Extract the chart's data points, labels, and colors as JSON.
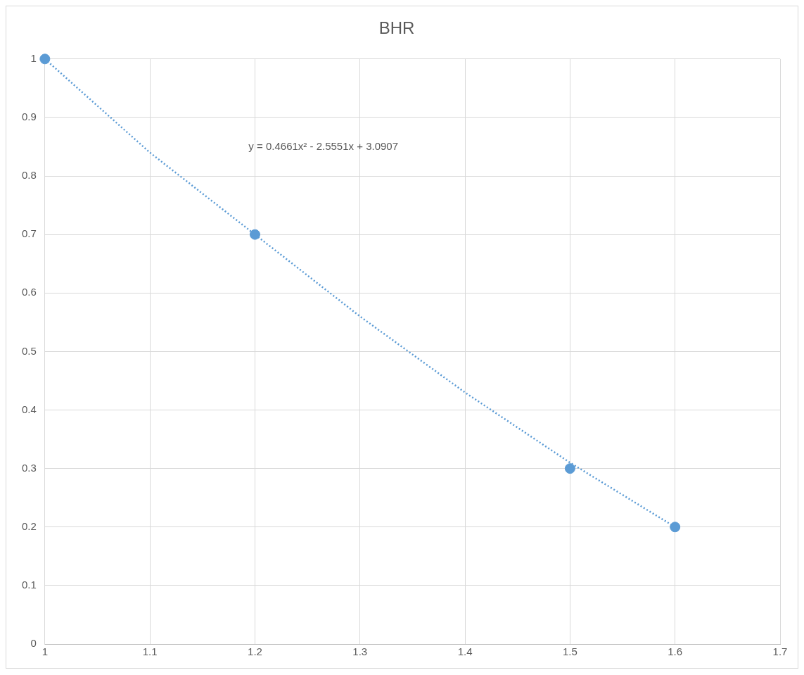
{
  "chart_data": {
    "type": "scatter",
    "title": "BHR",
    "xlim": [
      1,
      1.7
    ],
    "ylim": [
      0,
      1
    ],
    "xticks": [
      1,
      1.1,
      1.2,
      1.3,
      1.4,
      1.5,
      1.6,
      1.7
    ],
    "yticks": [
      0,
      0.1,
      0.2,
      0.3,
      0.4,
      0.5,
      0.6,
      0.7,
      0.8,
      0.9,
      1
    ],
    "grid": true,
    "legend": false,
    "series": [
      {
        "type": "scatter",
        "color": "#5b9bd5",
        "marker": "circle",
        "x": [
          1,
          1.2,
          1.5,
          1.6
        ],
        "values": [
          1,
          0.7,
          0.3,
          0.2
        ]
      },
      {
        "type": "line",
        "color": "#5b9bd5",
        "line_style": "dotted",
        "marker": "none",
        "x": [
          1,
          1.1,
          1.2,
          1.3,
          1.4,
          1.5,
          1.6
        ],
        "values": [
          1,
          0.84,
          0.7,
          0.56,
          0.43,
          0.31,
          0.2
        ]
      }
    ],
    "annotations": [
      "y = 0.4661x² - 2.5551x + 3.0907"
    ]
  }
}
